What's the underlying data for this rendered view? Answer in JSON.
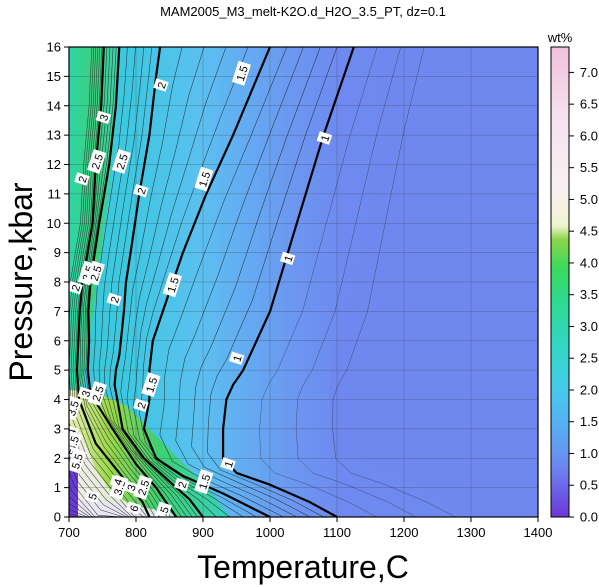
{
  "chart_data": {
    "type": "contour",
    "title": "MAM2005_M3_melt-K2O.d_H2O_3.5_PT, dz=0.1",
    "xlabel": "Temperature,C",
    "ylabel": "Pressure,kbar",
    "xlim": [
      700,
      1400
    ],
    "ylim": [
      0,
      16
    ],
    "x_ticks": [
      "700",
      "800",
      "900",
      "1000",
      "1100",
      "1200",
      "1300",
      "1400"
    ],
    "y_ticks": [
      "0",
      "1",
      "2",
      "3",
      "4",
      "5",
      "6",
      "7",
      "8",
      "9",
      "10",
      "11",
      "12",
      "13",
      "14",
      "15",
      "16"
    ],
    "grid": true,
    "colorbar": {
      "label": "wt%",
      "range": [
        0,
        7.4
      ],
      "ticks": [
        "0.0",
        "0.5",
        "1.0",
        "1.5",
        "2.0",
        "2.5",
        "3.0",
        "3.5",
        "4.0",
        "4.5",
        "5.0",
        "5.5",
        "6.0",
        "6.5",
        "7.0"
      ]
    },
    "field_level_wt": 0.8,
    "contour_lines": [
      {
        "level": "1",
        "points": [
          [
            1125,
            16
          ],
          [
            1080,
            13
          ],
          [
            1040,
            10
          ],
          [
            1000,
            7
          ],
          [
            960,
            5
          ],
          [
            945,
            4.5
          ],
          [
            935,
            4
          ],
          [
            930,
            3
          ],
          [
            930,
            2
          ],
          [
            950,
            1.5
          ],
          [
            1000,
            1.1
          ],
          [
            1060,
            0.5
          ],
          [
            1100,
            0
          ]
        ]
      },
      {
        "level": "1.5",
        "points": [
          [
            1000,
            16
          ],
          [
            945,
            13
          ],
          [
            905,
            11
          ],
          [
            870,
            9
          ],
          [
            840,
            7
          ],
          [
            825,
            6
          ],
          [
            820,
            5
          ],
          [
            820,
            4
          ],
          [
            812,
            3
          ],
          [
            830,
            2
          ],
          [
            870,
            1.4
          ],
          [
            930,
            0.8
          ],
          [
            1000,
            0
          ]
        ]
      },
      {
        "level": "2",
        "points": [
          [
            836,
            16
          ],
          [
            830,
            15
          ],
          [
            820,
            13
          ],
          [
            805,
            11
          ],
          [
            792,
            9
          ],
          [
            785,
            8
          ],
          [
            782,
            7
          ],
          [
            775,
            5.5
          ],
          [
            770,
            5
          ],
          [
            768,
            4.5
          ],
          [
            780,
            3
          ],
          [
            812,
            2
          ],
          [
            860,
            1
          ],
          [
            880,
            0.6
          ],
          [
            900,
            0
          ]
        ]
      },
      {
        "level": "2.5",
        "points": [
          [
            775,
            16
          ],
          [
            770,
            14
          ],
          [
            760,
            12
          ],
          [
            745,
            10
          ],
          [
            732,
            8
          ],
          [
            729,
            7
          ],
          [
            730,
            6
          ],
          [
            728,
            5
          ],
          [
            732,
            4.2
          ],
          [
            765,
            3
          ],
          [
            800,
            1.8
          ],
          [
            830,
            1
          ],
          [
            860,
            0
          ]
        ]
      },
      {
        "level": "3",
        "points": [
          [
            752,
            16
          ],
          [
            748,
            14
          ],
          [
            740,
            12
          ],
          [
            735,
            10
          ],
          [
            720,
            8
          ],
          [
            716,
            7
          ],
          [
            712,
            5
          ],
          [
            715,
            4
          ],
          [
            740,
            2.5
          ],
          [
            775,
            1.5
          ],
          [
            810,
            0.5
          ],
          [
            820,
            0
          ]
        ]
      }
    ],
    "contour_labels": [
      {
        "text": "1",
        "x": 1082,
        "y": 12.9
      },
      {
        "text": "1",
        "x": 1027,
        "y": 8.8
      },
      {
        "text": "1",
        "x": 951,
        "y": 5.4
      },
      {
        "text": "1",
        "x": 938,
        "y": 1.8
      },
      {
        "text": "1.5",
        "x": 958,
        "y": 15.1
      },
      {
        "text": "1.5",
        "x": 902,
        "y": 11.5
      },
      {
        "text": "1.5",
        "x": 855,
        "y": 7.9
      },
      {
        "text": "1.5",
        "x": 823,
        "y": 4.5
      },
      {
        "text": "1.5",
        "x": 902,
        "y": 1.2
      },
      {
        "text": "2",
        "x": 838,
        "y": 14.7
      },
      {
        "text": "2",
        "x": 808,
        "y": 11.1
      },
      {
        "text": "2",
        "x": 768,
        "y": 7.4
      },
      {
        "text": "2",
        "x": 710,
        "y": 7.8
      },
      {
        "text": "2",
        "x": 720,
        "y": 11.5
      },
      {
        "text": "2",
        "x": 808,
        "y": 3.8
      },
      {
        "text": "2",
        "x": 869,
        "y": 1.1
      },
      {
        "text": "2.5",
        "x": 779,
        "y": 12.1
      },
      {
        "text": "2.5",
        "x": 742,
        "y": 12.1
      },
      {
        "text": "2.5",
        "x": 728,
        "y": 8.3
      },
      {
        "text": "2.5",
        "x": 740,
        "y": 8.3
      },
      {
        "text": "2.5",
        "x": 743,
        "y": 4.2
      },
      {
        "text": "2.5",
        "x": 811,
        "y": 1.0
      },
      {
        "text": "3",
        "x": 752,
        "y": 13.6
      },
      {
        "text": "3",
        "x": 725,
        "y": 4.2
      },
      {
        "text": "3",
        "x": 793,
        "y": 1.0
      },
      {
        "text": "3.5",
        "x": 706,
        "y": 3.7
      },
      {
        "text": "3.5",
        "x": 775,
        "y": 1.0
      },
      {
        "text": "4",
        "x": 704,
        "y": 2.9
      },
      {
        "text": "4",
        "x": 773,
        "y": 1.2
      },
      {
        "text": "4.5",
        "x": 706,
        "y": 2.5
      },
      {
        "text": "5",
        "x": 706,
        "y": 2.2
      },
      {
        "text": "5",
        "x": 735,
        "y": 0.7
      },
      {
        "text": "5.5",
        "x": 712,
        "y": 1.9
      },
      {
        "text": "5.5",
        "x": 840,
        "y": 0.1
      },
      {
        "text": "6",
        "x": 797,
        "y": 0.3
      }
    ]
  }
}
